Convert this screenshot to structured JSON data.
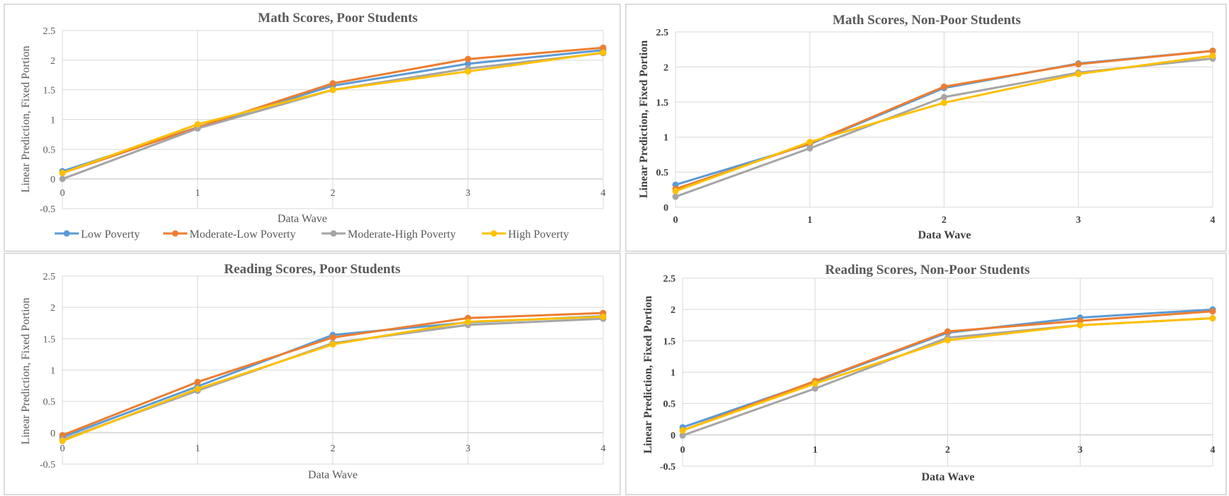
{
  "colors": {
    "Low Poverty": "#5b9bd5",
    "Moderate-Low Poverty": "#ed7d31",
    "Moderate-High Poverty": "#a5a5a5",
    "High Poverty": "#ffc000"
  },
  "legend": [
    "Low Poverty",
    "Moderate-Low Poverty",
    "Moderate-High Poverty",
    "High Poverty"
  ],
  "chart_data": [
    {
      "type": "line",
      "title": "Math Scores, Poor Students",
      "xlabel": "Data Wave",
      "ylabel": "Linear Prediction, Fixed Portion",
      "x": [
        0,
        1,
        2,
        3,
        4
      ],
      "ylim": [
        -0.5,
        2.5
      ],
      "yticks": [
        "-0.5",
        "0",
        "0.5",
        "1",
        "1.5",
        "2",
        "2.5"
      ],
      "xticks": [
        "0",
        "1",
        "2",
        "3",
        "4"
      ],
      "grid": true,
      "legend_position": "bottom",
      "series": [
        {
          "name": "Low Poverty",
          "values": [
            0.13,
            0.87,
            1.57,
            1.94,
            2.17
          ]
        },
        {
          "name": "Moderate-Low Poverty",
          "values": [
            0.1,
            0.87,
            1.61,
            2.02,
            2.21
          ]
        },
        {
          "name": "Moderate-High Poverty",
          "values": [
            0.0,
            0.85,
            1.5,
            1.86,
            2.12
          ]
        },
        {
          "name": "High Poverty",
          "values": [
            0.1,
            0.92,
            1.5,
            1.81,
            2.13
          ]
        }
      ]
    },
    {
      "type": "line",
      "title": "Math Scores, Non-Poor Students",
      "xlabel": "Data Wave",
      "ylabel": "Linear Prediction, Fixed Portion",
      "x": [
        0,
        1,
        2,
        3,
        4
      ],
      "ylim": [
        0,
        2.5
      ],
      "yticks": [
        "0",
        "0.5",
        "1",
        "1.5",
        "2",
        "2.5"
      ],
      "xticks": [
        "0",
        "1",
        "2",
        "3",
        "4"
      ],
      "grid": true,
      "series": [
        {
          "name": "Low Poverty",
          "values": [
            0.32,
            0.9,
            1.7,
            2.05,
            2.23
          ]
        },
        {
          "name": "Moderate-Low Poverty",
          "values": [
            0.26,
            0.91,
            1.72,
            2.04,
            2.23
          ]
        },
        {
          "name": "Moderate-High Poverty",
          "values": [
            0.15,
            0.84,
            1.57,
            1.92,
            2.12
          ]
        },
        {
          "name": "High Poverty",
          "values": [
            0.23,
            0.93,
            1.49,
            1.9,
            2.16
          ]
        }
      ]
    },
    {
      "type": "line",
      "title": "Reading Scores, Poor Students",
      "xlabel": "Data Wave",
      "ylabel": "Linear Prediction, Fixed Portion",
      "x": [
        0,
        1,
        2,
        3,
        4
      ],
      "ylim": [
        -0.5,
        2.5
      ],
      "yticks": [
        "-0.5",
        "0",
        "0.5",
        "1",
        "1.5",
        "2",
        "2.5"
      ],
      "xticks": [
        "0",
        "1",
        "2",
        "3",
        "4"
      ],
      "grid": true,
      "series": [
        {
          "name": "Low Poverty",
          "values": [
            -0.07,
            0.74,
            1.56,
            1.76,
            1.86
          ]
        },
        {
          "name": "Moderate-Low Poverty",
          "values": [
            -0.04,
            0.81,
            1.52,
            1.83,
            1.91
          ]
        },
        {
          "name": "Moderate-High Poverty",
          "values": [
            -0.11,
            0.67,
            1.43,
            1.72,
            1.82
          ]
        },
        {
          "name": "High Poverty",
          "values": [
            -0.13,
            0.7,
            1.41,
            1.77,
            1.85
          ]
        }
      ]
    },
    {
      "type": "line",
      "title": "Reading Scores, Non-Poor Students",
      "xlabel": "Data Wave",
      "ylabel": "Linear Prediction, Fixed Portion",
      "x": [
        0,
        1,
        2,
        3,
        4
      ],
      "ylim": [
        -0.5,
        2.5
      ],
      "yticks": [
        "-0.5",
        "0",
        "0.5",
        "1",
        "1.5",
        "2",
        "2.5"
      ],
      "xticks": [
        "0",
        "1",
        "2",
        "3",
        "4"
      ],
      "grid": true,
      "series": [
        {
          "name": "Low Poverty",
          "values": [
            0.12,
            0.85,
            1.63,
            1.87,
            2.0
          ]
        },
        {
          "name": "Moderate-Low Poverty",
          "values": [
            0.07,
            0.86,
            1.65,
            1.82,
            1.97
          ]
        },
        {
          "name": "Moderate-High Poverty",
          "values": [
            -0.01,
            0.74,
            1.55,
            1.75,
            1.86
          ]
        },
        {
          "name": "High Poverty",
          "values": [
            0.07,
            0.82,
            1.51,
            1.75,
            1.86
          ]
        }
      ]
    }
  ]
}
